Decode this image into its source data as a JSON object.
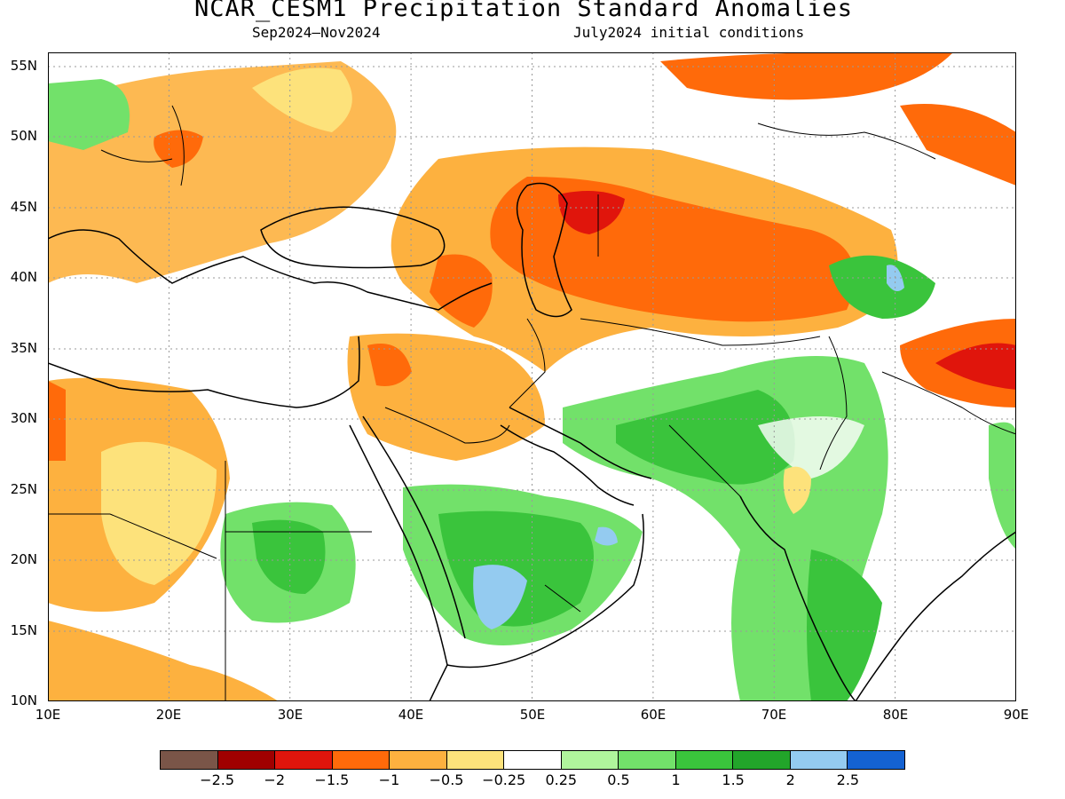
{
  "title": "NCAR_CESM1 Precipitation Standard Anomalies",
  "subtitle_period": "Sep2024–Nov2024",
  "subtitle_init": "July2024 initial conditions",
  "map": {
    "lat_labels": [
      "55N",
      "50N",
      "45N",
      "40N",
      "35N",
      "30N",
      "25N",
      "20N",
      "15N",
      "10N"
    ],
    "lon_labels": [
      "10E",
      "20E",
      "30E",
      "40E",
      "50E",
      "60E",
      "70E",
      "80E",
      "90E"
    ],
    "lat_range": [
      10,
      56
    ],
    "lon_range": [
      10,
      90
    ]
  },
  "colorbar": {
    "colors": [
      "#7a5548",
      "#a00000",
      "#e0150c",
      "#ff6a0a",
      "#fdb13f",
      "#fde27b",
      "#ffffff",
      "#b0f59c",
      "#72e16a",
      "#3ac43c",
      "#22a52a",
      "#94cbf0",
      "#1462d2"
    ],
    "labels": [
      "−2.5",
      "−2",
      "−1.5",
      "−1",
      "−0.5",
      "−0.25",
      "0.25",
      "0.5",
      "1",
      "1.5",
      "2",
      "2.5"
    ]
  }
}
